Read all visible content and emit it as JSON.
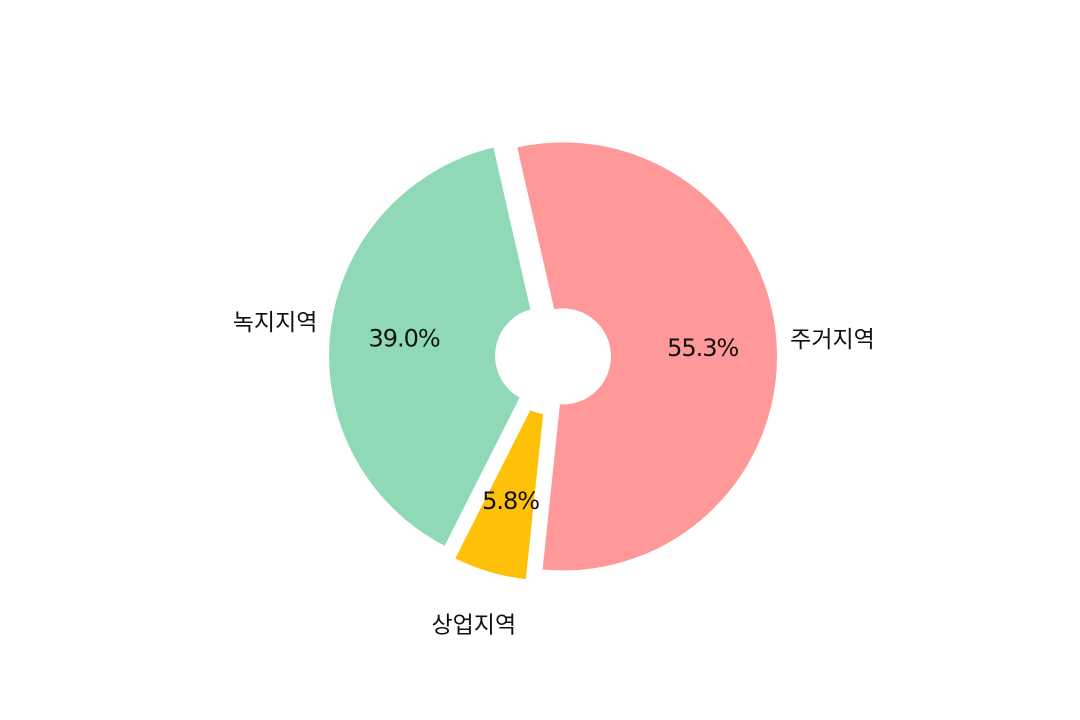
{
  "chart_data": {
    "type": "pie",
    "categories": [
      "주거지역",
      "녹지지역",
      "상업지역"
    ],
    "values": [
      55.3,
      39.0,
      5.8
    ],
    "value_labels": [
      "55.3%",
      "39.0%",
      "5.8%"
    ],
    "colors": [
      "#ff9999",
      "#90d9b7",
      "#ffc107"
    ],
    "donut": true,
    "start": "bottom",
    "direction": "counterclockwise",
    "title": ""
  }
}
